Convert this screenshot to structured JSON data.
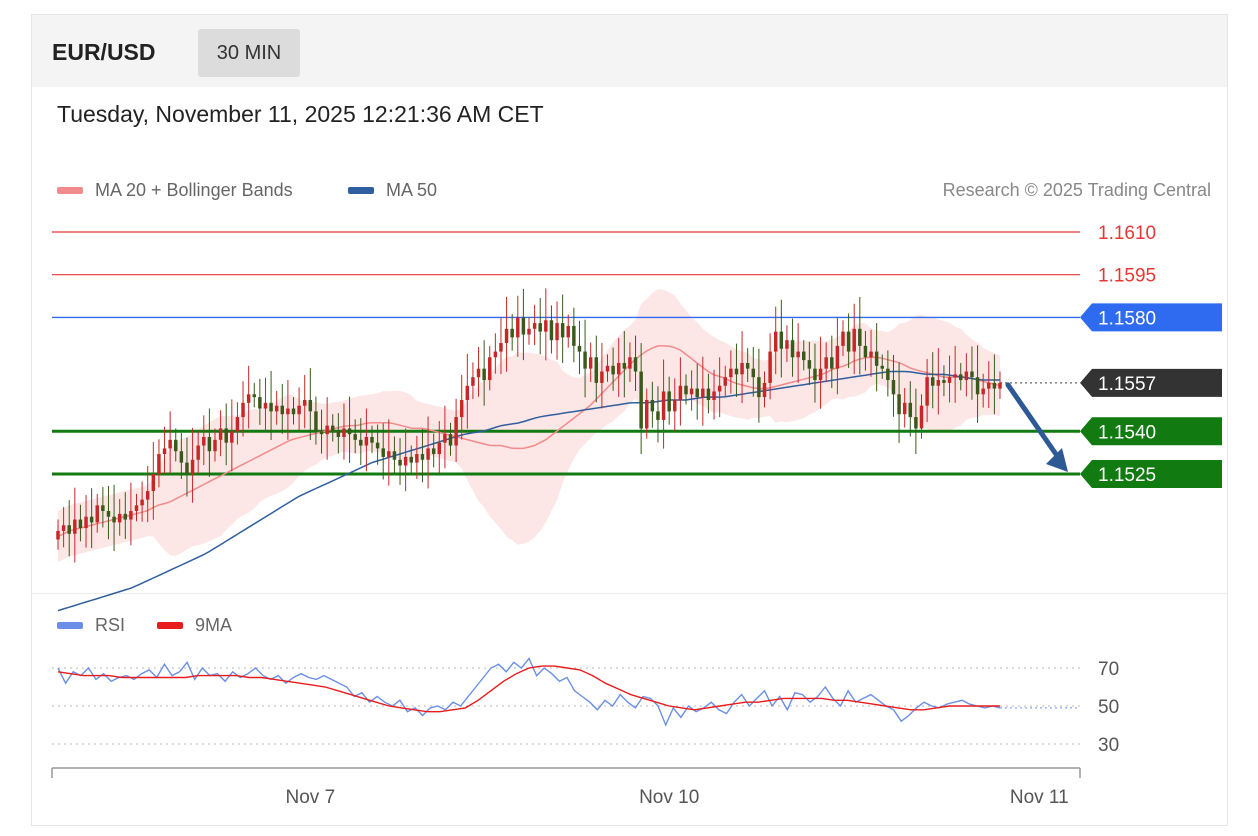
{
  "header": {
    "symbol": "EUR/USD",
    "timeframe": "30 MIN"
  },
  "timestamp": "Tuesday, November 11, 2025 12:21:36 AM CET",
  "legend": {
    "ma20": {
      "label": "MA 20 + Bollinger Bands",
      "color": "#f28b8b"
    },
    "ma50": {
      "label": "MA 50",
      "color": "#2f5f9e"
    },
    "rsi": {
      "label": "RSI",
      "color": "#6b8fe6"
    },
    "rsi_ma": {
      "label": "9MA",
      "color": "#e81c1c"
    }
  },
  "copyright": "Research © 2025 Trading Central",
  "colors": {
    "up": "#c62828",
    "down": "#3a5a1c",
    "support": "#117a11",
    "resistance": "#e53935",
    "pivot": "#2e6bf0",
    "current": "#333333",
    "arrow": "#2d5a94",
    "band": "#fde2e2"
  },
  "chart_data": [
    {
      "type": "candlestick",
      "symbol": "EUR/USD",
      "interval": "30 MIN",
      "ylim": [
        1.1495,
        1.1625
      ],
      "x_ticks": [
        {
          "label": "Nov 7",
          "index": 45
        },
        {
          "label": "Nov 10",
          "index": 109
        },
        {
          "label": "Nov 11",
          "index": 175
        }
      ],
      "levels": [
        {
          "value": 1.161,
          "label": "1.1610",
          "kind": "resistance"
        },
        {
          "value": 1.1595,
          "label": "1.1595",
          "kind": "resistance"
        },
        {
          "value": 1.158,
          "label": "1.1580",
          "kind": "pivot"
        },
        {
          "value": 1.1557,
          "label": "1.1557",
          "kind": "current"
        },
        {
          "value": 1.154,
          "label": "1.1540",
          "kind": "support"
        },
        {
          "value": 1.1525,
          "label": "1.1525",
          "kind": "support"
        }
      ],
      "forecast": {
        "from": 1.1557,
        "to": 1.1525,
        "direction": "down"
      },
      "closes": [
        1.1505,
        1.1507,
        1.1504,
        1.1509,
        1.1506,
        1.151,
        1.1508,
        1.1514,
        1.1512,
        1.151,
        1.1508,
        1.1511,
        1.1509,
        1.1512,
        1.1514,
        1.1516,
        1.1519,
        1.1525,
        1.1532,
        1.1534,
        1.1537,
        1.1533,
        1.1529,
        1.1525,
        1.153,
        1.1535,
        1.1538,
        1.1533,
        1.1537,
        1.1541,
        1.1536,
        1.154,
        1.1545,
        1.155,
        1.1553,
        1.1552,
        1.1548,
        1.155,
        1.1547,
        1.1549,
        1.1546,
        1.1548,
        1.1546,
        1.1549,
        1.1551,
        1.1547,
        1.154,
        1.1539,
        1.1542,
        1.154,
        1.1538,
        1.1541,
        1.1539,
        1.1537,
        1.1535,
        1.1538,
        1.1536,
        1.1534,
        1.1531,
        1.1533,
        1.153,
        1.1528,
        1.1531,
        1.1529,
        1.1532,
        1.153,
        1.1534,
        1.1532,
        1.1536,
        1.1539,
        1.1535,
        1.1545,
        1.1551,
        1.1556,
        1.1559,
        1.1562,
        1.1558,
        1.1566,
        1.1568,
        1.1571,
        1.1576,
        1.1573,
        1.158,
        1.1574,
        1.1576,
        1.1578,
        1.1575,
        1.1579,
        1.1572,
        1.1578,
        1.1573,
        1.1577,
        1.157,
        1.1568,
        1.1562,
        1.1566,
        1.1557,
        1.1561,
        1.1563,
        1.156,
        1.1564,
        1.1562,
        1.1566,
        1.1561,
        1.1541,
        1.1551,
        1.1547,
        1.1544,
        1.1554,
        1.1547,
        1.1551,
        1.1556,
        1.1553,
        1.1555,
        1.1552,
        1.1555,
        1.1551,
        1.1554,
        1.1556,
        1.1559,
        1.1562,
        1.156,
        1.1564,
        1.1562,
        1.1559,
        1.1552,
        1.1557,
        1.1568,
        1.1575,
        1.1569,
        1.1572,
        1.1566,
        1.1568,
        1.1565,
        1.1562,
        1.1558,
        1.1562,
        1.1566,
        1.1562,
        1.157,
        1.1575,
        1.1568,
        1.1576,
        1.157,
        1.1566,
        1.1568,
        1.1563,
        1.1562,
        1.1558,
        1.1553,
        1.1546,
        1.155,
        1.1545,
        1.1541,
        1.1549,
        1.1559,
        1.1556,
        1.1558,
        1.1557,
        1.1559,
        1.156,
        1.1558,
        1.1561,
        1.1559,
        1.1553,
        1.1555,
        1.1557,
        1.1555,
        1.1557
      ],
      "ma20": [
        1.1503,
        1.1505,
        1.1506,
        1.1507,
        1.1508,
        1.1509,
        1.151,
        1.1511,
        1.1512,
        1.1514,
        1.1515,
        1.1517,
        1.1519,
        1.1521,
        1.1523,
        1.1525,
        1.1527,
        1.1529,
        1.1531,
        1.1533,
        1.1535,
        1.1537,
        1.1538,
        1.1539,
        1.154,
        1.1541,
        1.1542,
        1.1542,
        1.1543,
        1.1543,
        1.1543,
        1.1542,
        1.1541,
        1.1541,
        1.154,
        1.1539,
        1.1538,
        1.1537,
        1.1536,
        1.1535,
        1.1535,
        1.1534,
        1.1534,
        1.1535,
        1.1537,
        1.154,
        1.1543,
        1.1546,
        1.1549,
        1.1553,
        1.1557,
        1.1561,
        1.1565,
        1.1568,
        1.157,
        1.157,
        1.1569,
        1.1566,
        1.1563,
        1.156,
        1.1559,
        1.1557,
        1.1556,
        1.1555,
        1.1555,
        1.1556,
        1.1557,
        1.1558,
        1.1559,
        1.156,
        1.1562,
        1.1563,
        1.1565,
        1.1566,
        1.1566,
        1.1565,
        1.1564,
        1.1562,
        1.1561,
        1.156,
        1.1559,
        1.1559,
        1.1559,
        1.1558,
        1.1557,
        1.1556
      ],
      "ma50": [
        1.1477,
        1.1479,
        1.1481,
        1.1483,
        1.1485,
        1.1488,
        1.1491,
        1.1494,
        1.1497,
        1.1501,
        1.1505,
        1.1509,
        1.1513,
        1.1517,
        1.152,
        1.1523,
        1.1526,
        1.1529,
        1.1531,
        1.1533,
        1.1535,
        1.1537,
        1.1539,
        1.154,
        1.1542,
        1.1543,
        1.1545,
        1.1546,
        1.1547,
        1.1548,
        1.1549,
        1.155,
        1.155,
        1.1551,
        1.1551,
        1.1552,
        1.1552,
        1.1553,
        1.1554,
        1.1555,
        1.1556,
        1.1557,
        1.1558,
        1.1559,
        1.156,
        1.1561,
        1.1561,
        1.156,
        1.156,
        1.1559,
        1.1558,
        1.1558
      ],
      "rsi_ticks": [
        70,
        50,
        30
      ],
      "rsi_ylim": [
        15,
        80
      ],
      "rsi": [
        70,
        62,
        68,
        66,
        70,
        64,
        67,
        63,
        65,
        66,
        64,
        67,
        69,
        65,
        72,
        66,
        68,
        73,
        64,
        70,
        66,
        67,
        63,
        68,
        65,
        67,
        70,
        66,
        64,
        66,
        62,
        65,
        67,
        65,
        64,
        66,
        64,
        62,
        60,
        55,
        57,
        52,
        55,
        52,
        50,
        53,
        47,
        49,
        45,
        49,
        50,
        48,
        52,
        50,
        55,
        60,
        65,
        70,
        72,
        68,
        73,
        70,
        75,
        66,
        70,
        67,
        63,
        65,
        58,
        55,
        52,
        48,
        53,
        50,
        56,
        52,
        49,
        55,
        54,
        50,
        40,
        49,
        44,
        50,
        47,
        49,
        52,
        48,
        46,
        52,
        56,
        50,
        54,
        58,
        50,
        55,
        48,
        57,
        56,
        52,
        55,
        60,
        54,
        50,
        58,
        52,
        54,
        56,
        53,
        50,
        48,
        42,
        45,
        49,
        52,
        50,
        49,
        51,
        52,
        53,
        51,
        50,
        49,
        50,
        49
      ],
      "rsi_ma": [
        68,
        67,
        66,
        66,
        66,
        65,
        65,
        65,
        65,
        65,
        65,
        66,
        66,
        66,
        66,
        65,
        65,
        64,
        63,
        62,
        61,
        60,
        58,
        56,
        54,
        52,
        50,
        49,
        48,
        47,
        47,
        48,
        49,
        53,
        58,
        63,
        67,
        70,
        71,
        71,
        70,
        69,
        66,
        62,
        59,
        56,
        54,
        52,
        50,
        49,
        48,
        49,
        50,
        51,
        52,
        52,
        53,
        54,
        54,
        54,
        54,
        53,
        53,
        52,
        51,
        50,
        49,
        48,
        48,
        49,
        50,
        50,
        50,
        50,
        50
      ]
    }
  ]
}
